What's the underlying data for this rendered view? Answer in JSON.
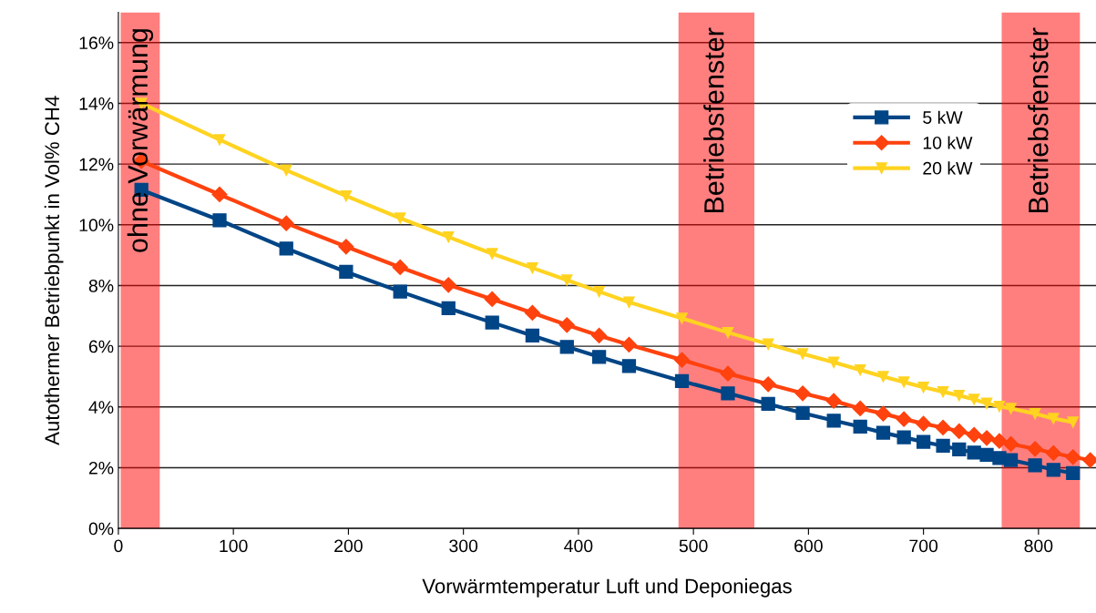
{
  "chart_data": {
    "type": "line",
    "xlabel": "Vorwärmtemperatur Luft und Deponiegas",
    "ylabel": "Autothermer Betriebpunkt in Vol% CH4",
    "xlim": [
      0,
      850
    ],
    "xticks": [
      0,
      100,
      200,
      300,
      400,
      500,
      600,
      700,
      800
    ],
    "ylim": [
      0,
      17
    ],
    "yticks": [
      {
        "value": 0,
        "label": "0%"
      },
      {
        "value": 2,
        "label": "2%"
      },
      {
        "value": 4,
        "label": "4%"
      },
      {
        "value": 6,
        "label": "6%"
      },
      {
        "value": 8,
        "label": "8%"
      },
      {
        "value": 10,
        "label": "10%"
      },
      {
        "value": 12,
        "label": "12%"
      },
      {
        "value": 14,
        "label": "14%"
      },
      {
        "value": 16,
        "label": "16%"
      }
    ],
    "grid": "y",
    "legend": "top right",
    "series": [
      {
        "name": "5 kW",
        "color": "#004586",
        "marker": "square",
        "x": [
          20,
          88,
          146,
          198,
          245,
          287,
          325,
          360,
          390,
          418,
          444,
          490,
          530,
          565,
          595,
          622,
          645,
          665,
          683,
          700,
          717,
          731,
          744,
          755,
          766,
          776,
          797,
          813,
          830
        ],
        "values": [
          11.15,
          10.15,
          9.22,
          8.45,
          7.8,
          7.25,
          6.78,
          6.35,
          5.98,
          5.65,
          5.35,
          4.85,
          4.45,
          4.1,
          3.8,
          3.55,
          3.35,
          3.15,
          3.0,
          2.85,
          2.72,
          2.6,
          2.5,
          2.42,
          2.32,
          2.25,
          2.08,
          1.93,
          1.82
        ]
      },
      {
        "name": "10 kW",
        "color": "#ff420e",
        "marker": "diamond",
        "x": [
          20,
          88,
          146,
          198,
          245,
          287,
          325,
          360,
          390,
          418,
          444,
          490,
          530,
          565,
          595,
          622,
          645,
          665,
          683,
          700,
          717,
          731,
          744,
          755,
          766,
          776,
          797,
          813,
          830,
          845
        ],
        "values": [
          12.1,
          11.0,
          10.05,
          9.28,
          8.6,
          8.02,
          7.55,
          7.1,
          6.7,
          6.35,
          6.05,
          5.55,
          5.1,
          4.75,
          4.45,
          4.2,
          3.95,
          3.78,
          3.6,
          3.45,
          3.32,
          3.2,
          3.08,
          2.98,
          2.88,
          2.78,
          2.62,
          2.48,
          2.35,
          2.25
        ]
      },
      {
        "name": "20 kW",
        "color": "#ffd320",
        "marker": "triangle",
        "x": [
          20,
          88,
          146,
          198,
          245,
          287,
          325,
          360,
          390,
          418,
          444,
          490,
          530,
          565,
          595,
          622,
          645,
          665,
          683,
          700,
          717,
          731,
          744,
          755,
          766,
          776,
          797,
          813,
          830
        ],
        "values": [
          14.0,
          12.8,
          11.8,
          10.95,
          10.22,
          9.6,
          9.05,
          8.58,
          8.18,
          7.8,
          7.45,
          6.92,
          6.45,
          6.07,
          5.75,
          5.47,
          5.22,
          5.0,
          4.82,
          4.65,
          4.5,
          4.38,
          4.25,
          4.12,
          4.02,
          3.95,
          3.78,
          3.62,
          3.5
        ]
      }
    ],
    "bands": [
      {
        "axis": "x",
        "from": 2,
        "to": 36,
        "label": "ohne Vorwärmung",
        "color": "#ff0000"
      },
      {
        "axis": "x",
        "from": 487,
        "to": 553,
        "label": "Betriebsfenster",
        "color": "#ff0000"
      },
      {
        "axis": "x",
        "from": 768,
        "to": 836,
        "label": "Betriebsfenster",
        "color": "#ff0000"
      }
    ]
  }
}
